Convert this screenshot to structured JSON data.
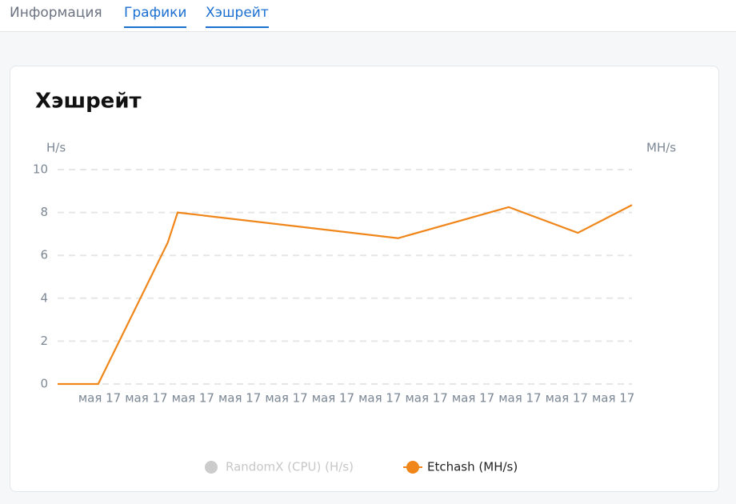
{
  "tabs": [
    "Информация",
    "Графики",
    "Хэшрейт"
  ],
  "chart_data": {
    "type": "line",
    "title": "Хэшрейт",
    "ylabel": "H/s",
    "y2label": "MH/s",
    "x": [
      0,
      0.87,
      2.36,
      2.57,
      7.29,
      9.66,
      11.14,
      12.3
    ],
    "xlim": [
      0,
      12.3
    ],
    "xticks": [
      {
        "value": 0.9,
        "label": "мая 17"
      },
      {
        "value": 1.9,
        "label": "мая 17"
      },
      {
        "value": 2.9,
        "label": "мая 17"
      },
      {
        "value": 3.9,
        "label": "мая 17"
      },
      {
        "value": 4.9,
        "label": "мая 17"
      },
      {
        "value": 5.9,
        "label": "мая 17"
      },
      {
        "value": 6.9,
        "label": "мая 17"
      },
      {
        "value": 7.9,
        "label": "мая 17"
      },
      {
        "value": 8.9,
        "label": "мая 17"
      },
      {
        "value": 9.9,
        "label": "мая 17"
      },
      {
        "value": 10.9,
        "label": "мая 17"
      },
      {
        "value": 11.9,
        "label": "мая 17"
      }
    ],
    "ylim": [
      0,
      10
    ],
    "yticks": [
      0,
      2,
      4,
      6,
      8,
      10
    ],
    "y2lim": [
      0,
      10
    ],
    "grid": true,
    "series": [
      {
        "name": "RandomX (CPU) (H/s)",
        "color": "#cccccc",
        "hidden": true,
        "values": [
          null,
          null,
          null,
          null,
          null,
          null,
          null,
          null
        ]
      },
      {
        "name": "Etchash (MH/s)",
        "color": "#f0861a",
        "axis": "y2",
        "values": [
          0,
          0,
          6.6,
          8.0,
          6.8,
          8.25,
          7.05,
          8.35
        ]
      }
    ]
  }
}
